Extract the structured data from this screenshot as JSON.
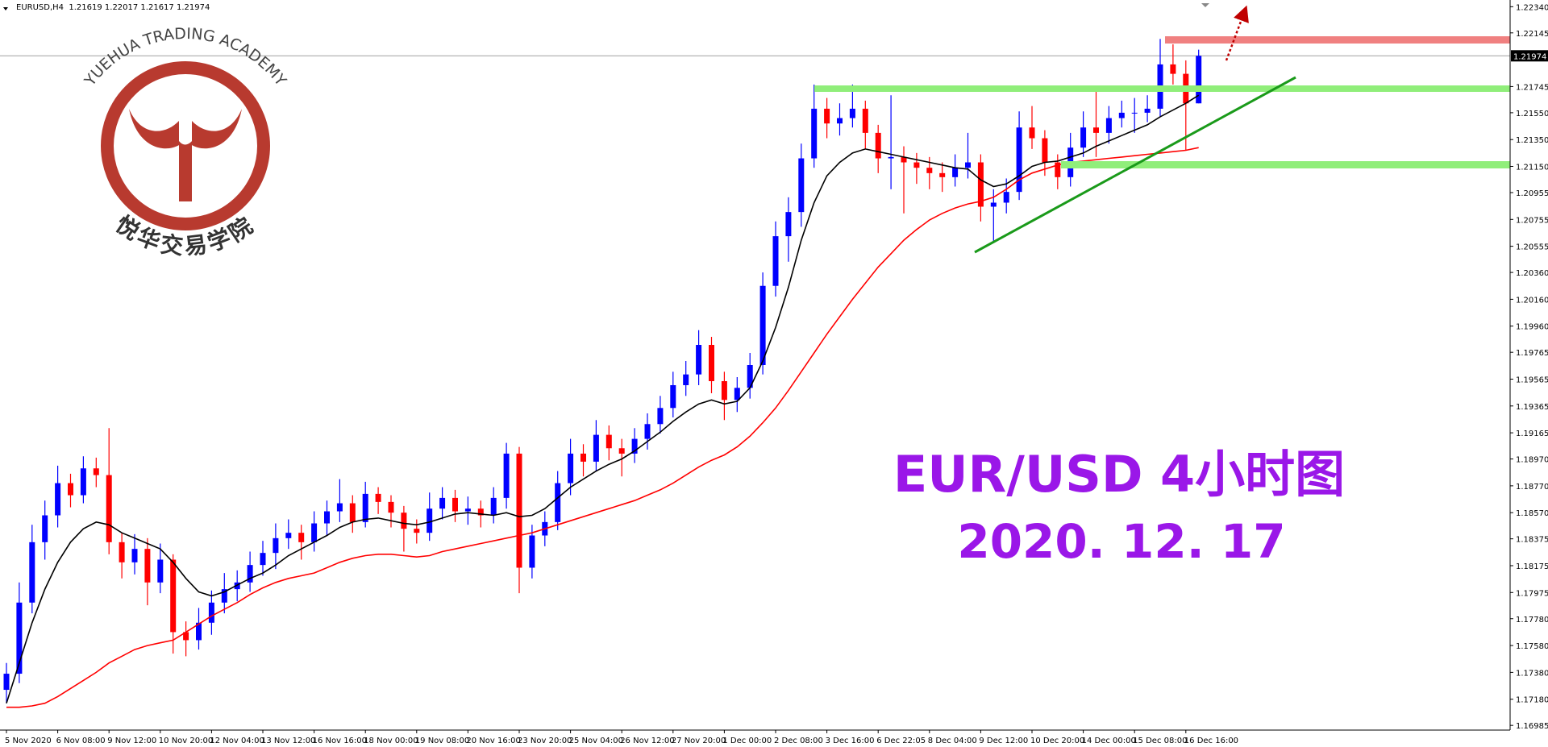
{
  "chart_data": {
    "type": "candlestick",
    "header": "EURUSD,H4  1.21619 1.22017 1.21617 1.21974",
    "title": "EUR/USD 4小时图",
    "subtitle": "2020. 12. 17",
    "watermark": "YUEHUA TRADING ACADEMY",
    "watermark_cn": "悦华交易学院",
    "up_color": "#0000ff",
    "down_color": "#ff0000",
    "ylim": [
      1.1695,
      1.2239
    ],
    "yticks": [
      {
        "value": 1.2234,
        "label": "1.22340"
      },
      {
        "value": 1.22145,
        "label": "1.22145"
      },
      {
        "value": 1.21745,
        "label": "1.21745"
      },
      {
        "value": 1.2155,
        "label": "1.21550"
      },
      {
        "value": 1.2135,
        "label": "1.21350"
      },
      {
        "value": 1.2115,
        "label": "1.21150"
      },
      {
        "value": 1.20955,
        "label": "1.20955"
      },
      {
        "value": 1.20755,
        "label": "1.20755"
      },
      {
        "value": 1.20555,
        "label": "1.20555"
      },
      {
        "value": 1.2036,
        "label": "1.20360"
      },
      {
        "value": 1.2016,
        "label": "1.20160"
      },
      {
        "value": 1.1996,
        "label": "1.19960"
      },
      {
        "value": 1.19765,
        "label": "1.19765"
      },
      {
        "value": 1.19565,
        "label": "1.19565"
      },
      {
        "value": 1.19365,
        "label": "1.19365"
      },
      {
        "value": 1.19165,
        "label": "1.19165"
      },
      {
        "value": 1.1897,
        "label": "1.18970"
      },
      {
        "value": 1.1877,
        "label": "1.18770"
      },
      {
        "value": 1.1857,
        "label": "1.18570"
      },
      {
        "value": 1.18375,
        "label": "1.18375"
      },
      {
        "value": 1.18175,
        "label": "1.18175"
      },
      {
        "value": 1.17975,
        "label": "1.17975"
      },
      {
        "value": 1.1778,
        "label": "1.17780"
      },
      {
        "value": 1.1758,
        "label": "1.17580"
      },
      {
        "value": 1.1738,
        "label": "1.17380"
      },
      {
        "value": 1.1718,
        "label": "1.17180"
      },
      {
        "value": 1.16985,
        "label": "1.16985"
      }
    ],
    "current_price": {
      "value": 1.21974,
      "label": "1.21974"
    },
    "categories": [
      "5 Nov 2020",
      null,
      null,
      null,
      "6 Nov 08:00",
      null,
      null,
      null,
      "9 Nov 12:00",
      null,
      null,
      null,
      "10 Nov 20:00",
      null,
      null,
      null,
      "12 Nov 04:00",
      null,
      null,
      null,
      "13 Nov 12:00",
      null,
      null,
      null,
      "16 Nov 16:00",
      null,
      null,
      null,
      "18 Nov 00:00",
      null,
      null,
      null,
      "19 Nov 08:00",
      null,
      null,
      null,
      "20 Nov 16:00",
      null,
      null,
      null,
      "23 Nov 20:00",
      null,
      null,
      null,
      "25 Nov 04:00",
      null,
      null,
      null,
      "26 Nov 12:00",
      null,
      null,
      null,
      "27 Nov 20:00",
      null,
      null,
      null,
      "1 Dec 00:00",
      null,
      null,
      null,
      "2 Dec 08:00",
      null,
      null,
      null,
      "3 Dec 16:00",
      null,
      null,
      null,
      "6 Dec 22:05",
      null,
      null,
      null,
      "8 Dec 04:00",
      null,
      null,
      null,
      "9 Dec 12:00",
      null,
      null,
      null,
      "10 Dec 20:00",
      null,
      null,
      null,
      "14 Dec 00:00",
      null,
      null,
      null,
      "15 Dec 08:00",
      null,
      null,
      null,
      "16 Dec 16:00",
      null
    ],
    "open": [
      1.1725,
      1.1737,
      1.179,
      1.1835,
      1.1855,
      1.1879,
      1.187,
      1.189,
      1.1885,
      1.1835,
      1.182,
      1.183,
      1.1805,
      1.1822,
      1.1768,
      1.1762,
      1.1775,
      1.179,
      1.18,
      1.1805,
      1.1818,
      1.1827,
      1.1838,
      1.1842,
      1.1835,
      1.1849,
      1.1858,
      1.1864,
      1.185,
      1.1871,
      1.1865,
      1.1857,
      1.1845,
      1.1842,
      1.186,
      1.1868,
      1.1858,
      1.186,
      1.1855,
      1.1868,
      1.1901,
      1.1816,
      1.184,
      1.185,
      1.1879,
      1.1901,
      1.1895,
      1.1915,
      1.1905,
      1.1901,
      1.1912,
      1.1923,
      1.1935,
      1.1952,
      1.196,
      1.1982,
      1.1955,
      1.1941,
      1.195,
      1.1967,
      1.2026,
      1.2063,
      1.2081,
      1.2121,
      1.2158,
      1.2147,
      1.2151,
      1.2158,
      1.214,
      1.2121,
      1.2122,
      1.2118,
      1.2114,
      1.211,
      1.2107,
      1.2114,
      1.2118,
      1.2085,
      1.2088,
      1.2096,
      1.2144,
      1.2136,
      1.2118,
      1.2107,
      1.2129,
      1.2144,
      1.214,
      1.2151,
      1.2155,
      1.2155,
      1.2158,
      1.2191,
      1.2184,
      1.2162
    ],
    "high": [
      1.1745,
      1.1805,
      1.1848,
      1.1866,
      1.1892,
      1.1886,
      1.1899,
      1.1898,
      1.192,
      1.1842,
      1.1841,
      1.1838,
      1.1834,
      1.1826,
      1.1776,
      1.1786,
      1.1799,
      1.1812,
      1.1814,
      1.1828,
      1.1836,
      1.1849,
      1.1852,
      1.1848,
      1.1858,
      1.1866,
      1.1882,
      1.187,
      1.188,
      1.1876,
      1.187,
      1.1862,
      1.1852,
      1.1872,
      1.1876,
      1.1874,
      1.1869,
      1.1866,
      1.1876,
      1.1909,
      1.1906,
      1.1848,
      1.1858,
      1.1888,
      1.1912,
      1.1908,
      1.1926,
      1.1922,
      1.1912,
      1.192,
      1.1931,
      1.1944,
      1.1962,
      1.197,
      1.1993,
      1.1988,
      1.1962,
      1.1958,
      1.1976,
      1.2036,
      1.2074,
      1.2092,
      1.2132,
      1.2176,
      1.2166,
      1.2162,
      1.2176,
      1.2164,
      1.2146,
      1.2168,
      1.213,
      1.2125,
      1.2122,
      1.2118,
      1.2124,
      1.214,
      1.2124,
      1.2098,
      1.2106,
      1.2156,
      1.216,
      1.2142,
      1.2124,
      1.214,
      1.2156,
      1.2175,
      1.216,
      1.2164,
      1.2166,
      1.2168,
      1.221,
      1.2206,
      1.2194,
      1.2202
    ],
    "low": [
      1.1715,
      1.173,
      1.1782,
      1.1822,
      1.1846,
      1.1861,
      1.1864,
      1.1876,
      1.1826,
      1.1808,
      1.1811,
      1.1788,
      1.1797,
      1.1752,
      1.175,
      1.1755,
      1.1766,
      1.1782,
      1.1791,
      1.1798,
      1.181,
      1.1815,
      1.183,
      1.1822,
      1.1828,
      1.184,
      1.185,
      1.1842,
      1.1846,
      1.1856,
      1.1846,
      1.1828,
      1.1834,
      1.1836,
      1.1852,
      1.185,
      1.1848,
      1.1846,
      1.1849,
      1.186,
      1.1797,
      1.1808,
      1.1832,
      1.1844,
      1.187,
      1.1884,
      1.1888,
      1.1896,
      1.1884,
      1.1894,
      1.1904,
      1.1916,
      1.1928,
      1.1944,
      1.1952,
      1.1946,
      1.1926,
      1.1932,
      1.1942,
      1.196,
      1.2018,
      1.2044,
      1.207,
      1.2114,
      1.2136,
      1.2138,
      1.2144,
      1.2128,
      1.211,
      1.2098,
      1.208,
      1.2102,
      1.2098,
      1.2096,
      1.21,
      1.2106,
      1.2074,
      1.2058,
      1.208,
      1.209,
      1.2128,
      1.2108,
      1.2098,
      1.21,
      1.2122,
      1.2122,
      1.2132,
      1.2144,
      1.214,
      1.2148,
      1.2152,
      1.2176,
      1.2127,
      1.2162
    ],
    "close": [
      1.1737,
      1.179,
      1.1835,
      1.1855,
      1.1879,
      1.187,
      1.189,
      1.1885,
      1.1835,
      1.182,
      1.183,
      1.1805,
      1.1822,
      1.1768,
      1.1762,
      1.1775,
      1.179,
      1.18,
      1.1805,
      1.1818,
      1.1827,
      1.1838,
      1.1842,
      1.1835,
      1.1849,
      1.1858,
      1.1864,
      1.185,
      1.1871,
      1.1865,
      1.1857,
      1.1845,
      1.1842,
      1.186,
      1.1868,
      1.1858,
      1.186,
      1.1855,
      1.1868,
      1.1901,
      1.1816,
      1.184,
      1.185,
      1.1879,
      1.1901,
      1.1895,
      1.1915,
      1.1905,
      1.1901,
      1.1912,
      1.1923,
      1.1935,
      1.1952,
      1.196,
      1.1982,
      1.1955,
      1.1941,
      1.195,
      1.1967,
      1.2026,
      1.2063,
      1.2081,
      1.2121,
      1.2158,
      1.2147,
      1.2151,
      1.2158,
      1.214,
      1.2121,
      1.2122,
      1.2118,
      1.2114,
      1.211,
      1.2107,
      1.2114,
      1.2118,
      1.2085,
      1.2088,
      1.2096,
      1.2144,
      1.2136,
      1.2118,
      1.2107,
      1.2129,
      1.2144,
      1.214,
      1.2151,
      1.2155,
      1.2155,
      1.2158,
      1.2191,
      1.2184,
      1.2162,
      1.21974
    ],
    "lines": [
      {
        "color": "#000000",
        "values": [
          1.1715,
          1.1745,
          1.1775,
          1.18,
          1.182,
          1.1835,
          1.1845,
          1.185,
          1.1848,
          1.1842,
          1.1838,
          1.1834,
          1.183,
          1.182,
          1.1808,
          1.1798,
          1.1795,
          1.1798,
          1.1803,
          1.1808,
          1.1812,
          1.1818,
          1.1825,
          1.183,
          1.1835,
          1.184,
          1.1846,
          1.185,
          1.1852,
          1.1853,
          1.1851,
          1.1849,
          1.1848,
          1.185,
          1.1853,
          1.1856,
          1.1857,
          1.1856,
          1.1855,
          1.1857,
          1.1854,
          1.1855,
          1.186,
          1.1868,
          1.1876,
          1.1882,
          1.1888,
          1.1893,
          1.1897,
          1.1903,
          1.191,
          1.1917,
          1.1925,
          1.1932,
          1.1938,
          1.1941,
          1.1938,
          1.194,
          1.195,
          1.197,
          1.1995,
          1.2025,
          1.206,
          1.2088,
          1.2108,
          1.2118,
          1.2125,
          1.2128,
          1.2126,
          1.2124,
          1.2122,
          1.212,
          1.2118,
          1.2116,
          1.2114,
          1.2113,
          1.2105,
          1.21,
          1.2102,
          1.2108,
          1.2115,
          1.2118,
          1.2119,
          1.2122,
          1.2125,
          1.213,
          1.2134,
          1.2138,
          1.2142,
          1.2146,
          1.2152,
          1.2157,
          1.2162,
          1.2168
        ]
      },
      {
        "color": "#ff0000",
        "values": [
          1.1712,
          1.1712,
          1.1713,
          1.1715,
          1.172,
          1.1726,
          1.1732,
          1.1738,
          1.1745,
          1.175,
          1.1755,
          1.1758,
          1.176,
          1.1762,
          1.1768,
          1.1774,
          1.178,
          1.1785,
          1.179,
          1.1796,
          1.1801,
          1.1805,
          1.1808,
          1.181,
          1.1812,
          1.1816,
          1.182,
          1.1823,
          1.1825,
          1.1826,
          1.1826,
          1.1825,
          1.1824,
          1.1825,
          1.1828,
          1.183,
          1.1832,
          1.1834,
          1.1836,
          1.1838,
          1.184,
          1.1842,
          1.1845,
          1.1848,
          1.1851,
          1.1854,
          1.1857,
          1.186,
          1.1863,
          1.1866,
          1.187,
          1.1874,
          1.1879,
          1.1885,
          1.1891,
          1.1896,
          1.19,
          1.1906,
          1.1914,
          1.1924,
          1.1935,
          1.1948,
          1.1962,
          1.1976,
          1.199,
          1.2003,
          1.2016,
          1.2028,
          1.204,
          1.205,
          1.206,
          1.2068,
          1.2075,
          1.208,
          1.2084,
          1.2087,
          1.2089,
          1.2092,
          1.2098,
          1.2105,
          1.211,
          1.2113,
          1.2116,
          1.2118,
          1.2119,
          1.212,
          1.2121,
          1.2122,
          1.2123,
          1.2124,
          1.2125,
          1.2126,
          1.2127,
          1.2129
        ]
      }
    ]
  }
}
